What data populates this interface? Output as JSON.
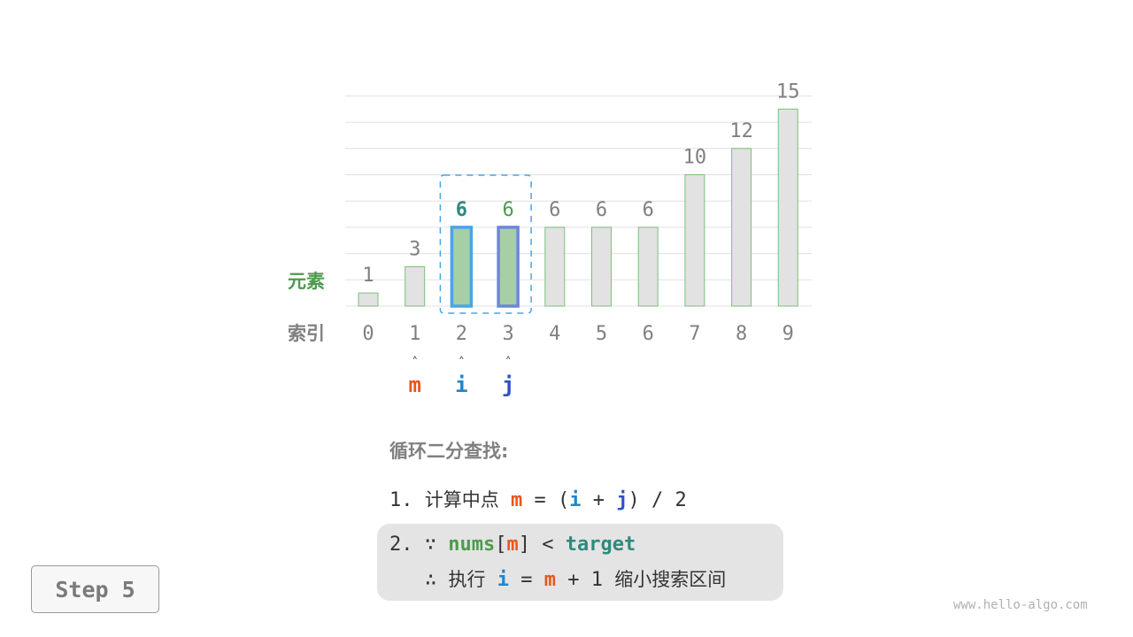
{
  "diagram": {
    "element_label": "元素",
    "index_label": "索引",
    "values": [
      1,
      3,
      6,
      6,
      6,
      6,
      6,
      10,
      12,
      15
    ],
    "indices": [
      "0",
      "1",
      "2",
      "3",
      "4",
      "5",
      "6",
      "7",
      "8",
      "9"
    ],
    "pointers": [
      {
        "name": "m",
        "index": 1,
        "color": "#e8561a"
      },
      {
        "name": "i",
        "index": 2,
        "color": "#1f86c9"
      },
      {
        "name": "j",
        "index": 3,
        "color": "#3050c8"
      }
    ],
    "highlight_indices": [
      2,
      3
    ],
    "pointer_arrow": "˄",
    "colors": {
      "bar": "#e2e2e2",
      "bar_border": "#7cbf7c",
      "highlight_fill": "#a6cfa6",
      "i_border": "#46a6e8",
      "j_border": "#6f86d9",
      "label_green": "#4e9a4e",
      "value_teal": "#2f8a7c",
      "grid": "#e0e0e0"
    }
  },
  "explanation": {
    "title": "循环二分查找:",
    "step1": {
      "num": "1.",
      "text": "计算中点",
      "m": "m",
      "eq": "=",
      "lp": "(",
      "i": "i",
      "plus": "+",
      "j": "j",
      "rp": ")",
      "div": "/",
      "two": "2"
    },
    "step2": {
      "num": "2.",
      "because": "∵",
      "nums": "nums",
      "lb": "[",
      "m": "m",
      "rb": "]",
      "lt": "<",
      "target": "target",
      "therefore": "∴",
      "exec": "执行",
      "i": "i",
      "eq": "=",
      "m2": "m",
      "plus": "+",
      "one": "1",
      "shrink": "缩小搜索区间"
    }
  },
  "step_label": "Step 5",
  "watermark": "www.hello-algo.com"
}
